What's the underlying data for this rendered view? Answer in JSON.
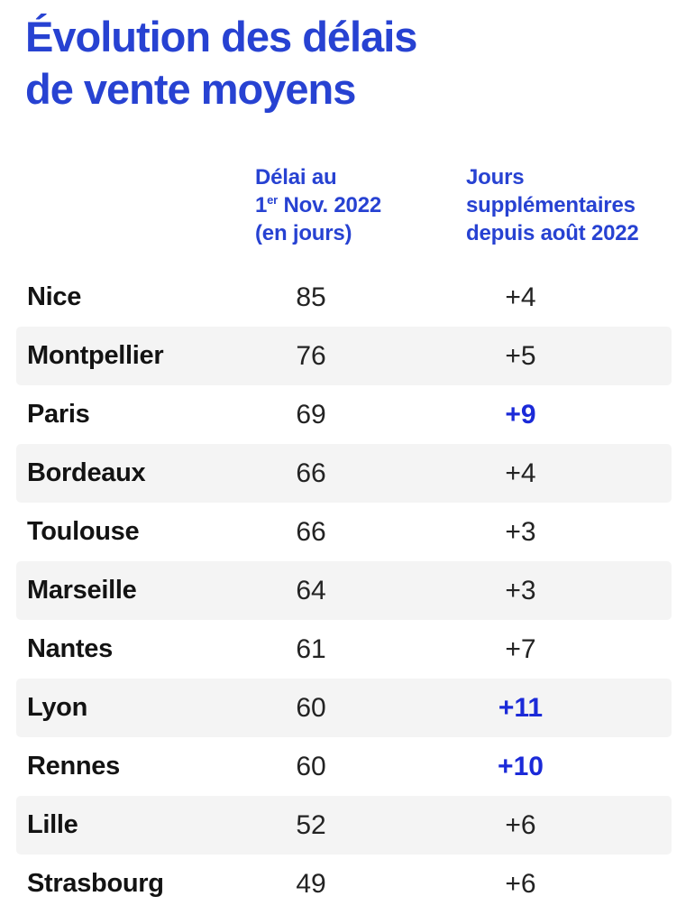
{
  "title": {
    "line1": "Évolution des délais",
    "line2": "de vente moyens"
  },
  "columns": {
    "delay": {
      "line1": "Délai au",
      "line2_num": "1",
      "line2_sup": "er",
      "line2_rest": " Nov. 2022",
      "line3": "(en jours)"
    },
    "extra": {
      "line1": "Jours",
      "line2": "supplémentaires",
      "line3": "depuis août 2022"
    }
  },
  "chart_data": {
    "type": "table",
    "title": "Évolution des délais de vente moyens",
    "columns": [
      "",
      "Délai au 1er Nov. 2022 (en jours)",
      "Jours supplémentaires depuis août 2022"
    ],
    "rows": [
      {
        "city": "Nice",
        "delay": 85,
        "change": "+4",
        "highlight": false
      },
      {
        "city": "Montpellier",
        "delay": 76,
        "change": "+5",
        "highlight": false
      },
      {
        "city": "Paris",
        "delay": 69,
        "change": "+9",
        "highlight": true
      },
      {
        "city": "Bordeaux",
        "delay": 66,
        "change": "+4",
        "highlight": false
      },
      {
        "city": "Toulouse",
        "delay": 66,
        "change": "+3",
        "highlight": false
      },
      {
        "city": "Marseille",
        "delay": 64,
        "change": "+3",
        "highlight": false
      },
      {
        "city": "Nantes",
        "delay": 61,
        "change": "+7",
        "highlight": false
      },
      {
        "city": "Lyon",
        "delay": 60,
        "change": "+11",
        "highlight": true
      },
      {
        "city": "Rennes",
        "delay": 60,
        "change": "+10",
        "highlight": true
      },
      {
        "city": "Lille",
        "delay": 52,
        "change": "+6",
        "highlight": false
      },
      {
        "city": "Strasbourg",
        "delay": 49,
        "change": "+6",
        "highlight": false
      }
    ]
  },
  "colors": {
    "brand_blue": "#2742d2",
    "highlight_blue": "#1b2ad8",
    "stripe": "#f4f4f4",
    "city_text": "#131313",
    "number_text": "#232323"
  }
}
